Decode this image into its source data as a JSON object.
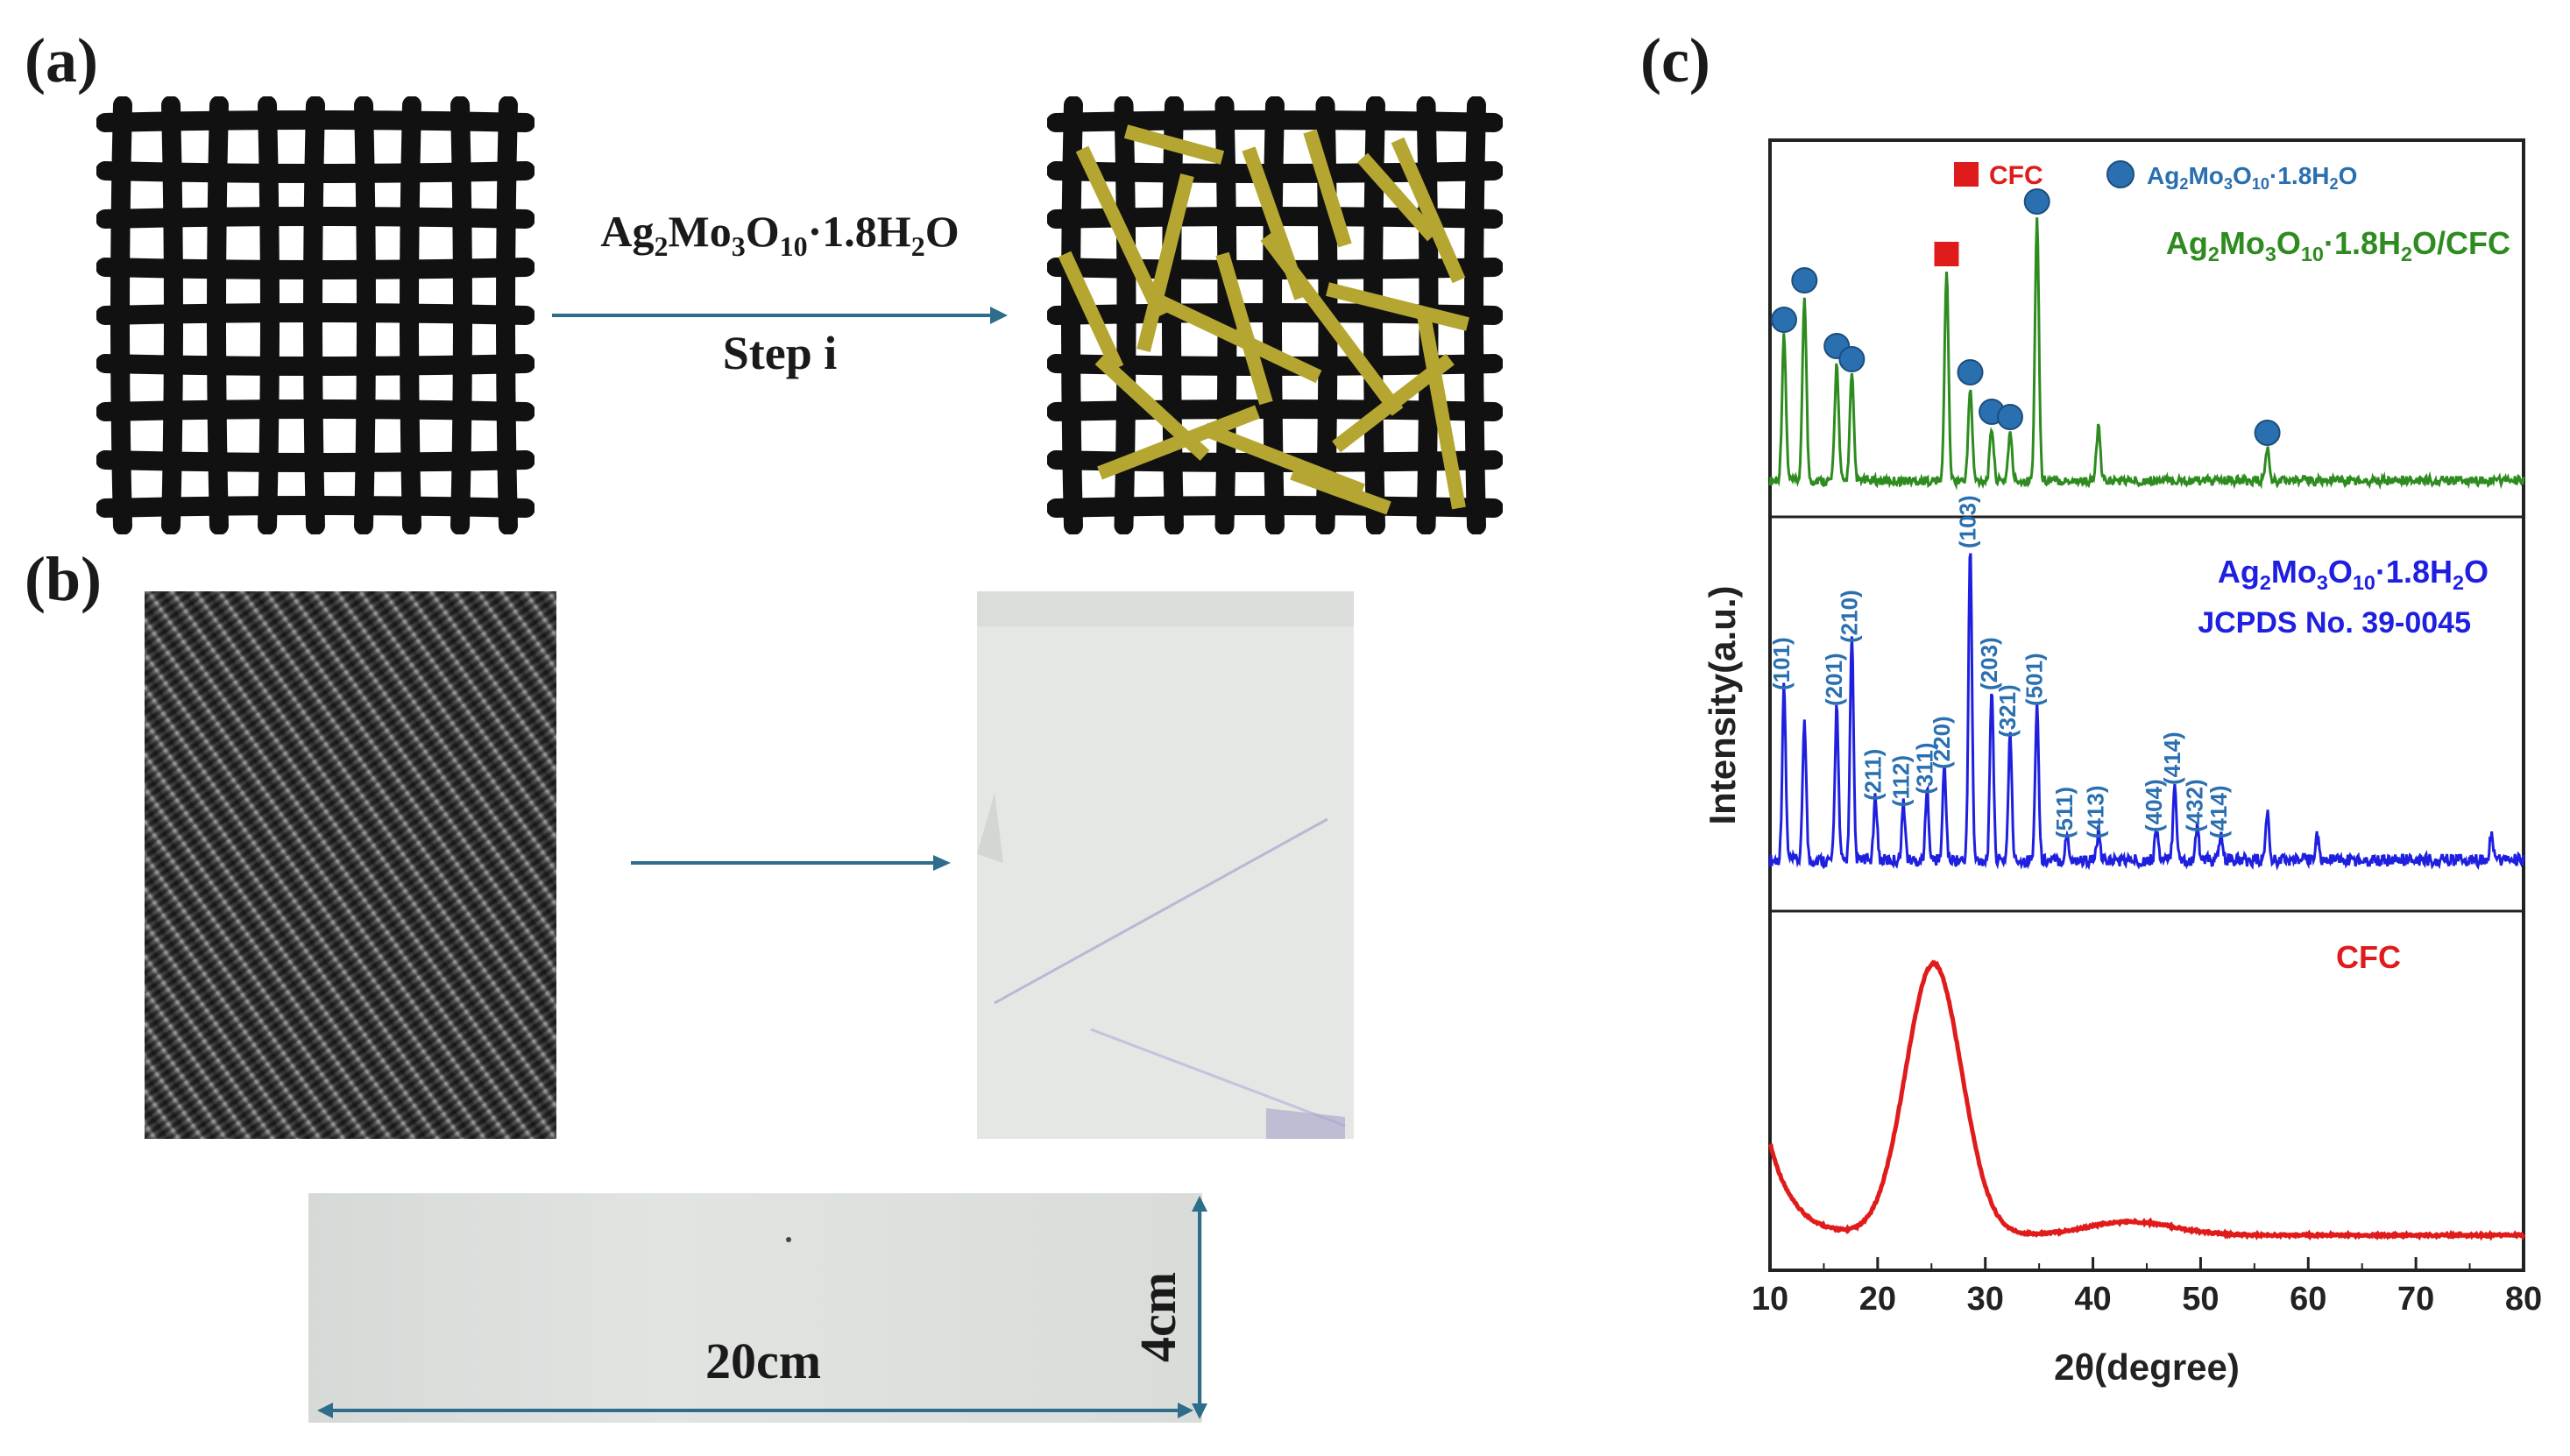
{
  "panels": {
    "a": {
      "letter": "(a)",
      "arrow_label_parts": [
        "Ag",
        "2",
        "Mo",
        "3",
        "O",
        "10",
        "·1.8H",
        "2",
        "O"
      ],
      "step_label": "Step i"
    },
    "b": {
      "letter": "(b)",
      "width_label": "20cm",
      "height_label": "4cm"
    },
    "c": {
      "letter": "(c)",
      "y_axis_label": "Intensity(a.u.)",
      "x_axis_label": "2θ(degree)",
      "x_ticks": [
        "10",
        "20",
        "30",
        "40",
        "50",
        "60",
        "70",
        "80"
      ],
      "legend": {
        "cfc_label": "CFC",
        "agmo_parts": [
          "Ag",
          "2",
          "Mo",
          "3",
          "O",
          "10",
          "·1.8H",
          "2",
          "O"
        ]
      },
      "top_label_parts": [
        "Ag",
        "2",
        "Mo",
        "3",
        "O",
        "10",
        "·1.8H",
        "2",
        "O/CFC"
      ],
      "middle_label_parts": [
        "Ag",
        "2",
        "Mo",
        "3",
        "O",
        "10",
        "·1.8H",
        "2",
        "O"
      ],
      "middle_label2": "JCPDS No. 39-0045",
      "bottom_label": "CFC",
      "peak_labels": [
        {
          "label": "(101)",
          "x": 11.3
        },
        {
          "label": "(201)",
          "x": 16.2
        },
        {
          "label": "(210)",
          "x": 17.6
        },
        {
          "label": "(211)",
          "x": 19.8
        },
        {
          "label": "(112)",
          "x": 22.4
        },
        {
          "label": "(311)",
          "x": 24.6
        },
        {
          "label": "(220)",
          "x": 26.2
        },
        {
          "label": "(103)",
          "x": 28.6
        },
        {
          "label": "(203)",
          "x": 30.6
        },
        {
          "label": "(321)",
          "x": 32.3
        },
        {
          "label": "(501)",
          "x": 34.8
        },
        {
          "label": "(511)",
          "x": 37.6
        },
        {
          "label": "(413)",
          "x": 40.5
        },
        {
          "label": "(404)",
          "x": 45.9
        },
        {
          "label": "(414)",
          "x": 47.6
        },
        {
          "label": "(432)",
          "x": 49.7
        },
        {
          "label": "(414)",
          "x": 51.9
        }
      ],
      "colors": {
        "top": "#2e8b1f",
        "middle": "#1f1fe0",
        "bottom": "#e01b1b",
        "cfc_marker": "#e01b1b",
        "agmo_marker": "#2a6fb0",
        "peak_label": "#2a6fb0"
      }
    }
  },
  "chart_data": {
    "type": "line",
    "xlabel": "2θ(degree)",
    "ylabel": "Intensity(a.u.)",
    "xlim": [
      10,
      80
    ],
    "series": [
      {
        "name": "Ag2Mo3O10·1.8H2O/CFC",
        "peaks": [
          {
            "x": 11.3,
            "y": 0.55,
            "marker": "Ag2Mo3O10·1.8H2O"
          },
          {
            "x": 13.2,
            "y": 0.7,
            "marker": "Ag2Mo3O10·1.8H2O"
          },
          {
            "x": 16.2,
            "y": 0.45,
            "marker": "Ag2Mo3O10·1.8H2O"
          },
          {
            "x": 17.6,
            "y": 0.4,
            "marker": "Ag2Mo3O10·1.8H2O"
          },
          {
            "x": 26.4,
            "y": 0.8,
            "marker": "CFC"
          },
          {
            "x": 28.6,
            "y": 0.35,
            "marker": "Ag2Mo3O10·1.8H2O"
          },
          {
            "x": 30.6,
            "y": 0.2,
            "marker": "Ag2Mo3O10·1.8H2O"
          },
          {
            "x": 32.3,
            "y": 0.18,
            "marker": "Ag2Mo3O10·1.8H2O"
          },
          {
            "x": 34.8,
            "y": 1.0,
            "marker": "Ag2Mo3O10·1.8H2O"
          },
          {
            "x": 40.5,
            "y": 0.2,
            "marker": ""
          },
          {
            "x": 56.2,
            "y": 0.12,
            "marker": "Ag2Mo3O10·1.8H2O"
          }
        ]
      },
      {
        "name": "Ag2Mo3O10·1.8H2O",
        "peaks": [
          {
            "x": 11.3,
            "y": 0.55
          },
          {
            "x": 13.2,
            "y": 0.45
          },
          {
            "x": 16.2,
            "y": 0.5
          },
          {
            "x": 17.6,
            "y": 0.7
          },
          {
            "x": 19.8,
            "y": 0.2
          },
          {
            "x": 22.4,
            "y": 0.18
          },
          {
            "x": 24.6,
            "y": 0.22
          },
          {
            "x": 26.2,
            "y": 0.3
          },
          {
            "x": 28.6,
            "y": 1.0
          },
          {
            "x": 30.6,
            "y": 0.55
          },
          {
            "x": 32.3,
            "y": 0.4
          },
          {
            "x": 34.8,
            "y": 0.5
          },
          {
            "x": 37.6,
            "y": 0.08
          },
          {
            "x": 40.5,
            "y": 0.08
          },
          {
            "x": 45.9,
            "y": 0.1
          },
          {
            "x": 47.6,
            "y": 0.25
          },
          {
            "x": 49.7,
            "y": 0.1
          },
          {
            "x": 51.9,
            "y": 0.08
          },
          {
            "x": 56.2,
            "y": 0.15
          },
          {
            "x": 60.8,
            "y": 0.08
          },
          {
            "x": 77.0,
            "y": 0.08
          }
        ]
      },
      {
        "name": "CFC",
        "broad_peaks": [
          {
            "x": 25.2,
            "y": 1.0,
            "width": 2.6
          },
          {
            "x": 43.5,
            "y": 0.05,
            "width": 4
          }
        ],
        "start_y": 0.34,
        "baseline": 0.0
      }
    ]
  }
}
